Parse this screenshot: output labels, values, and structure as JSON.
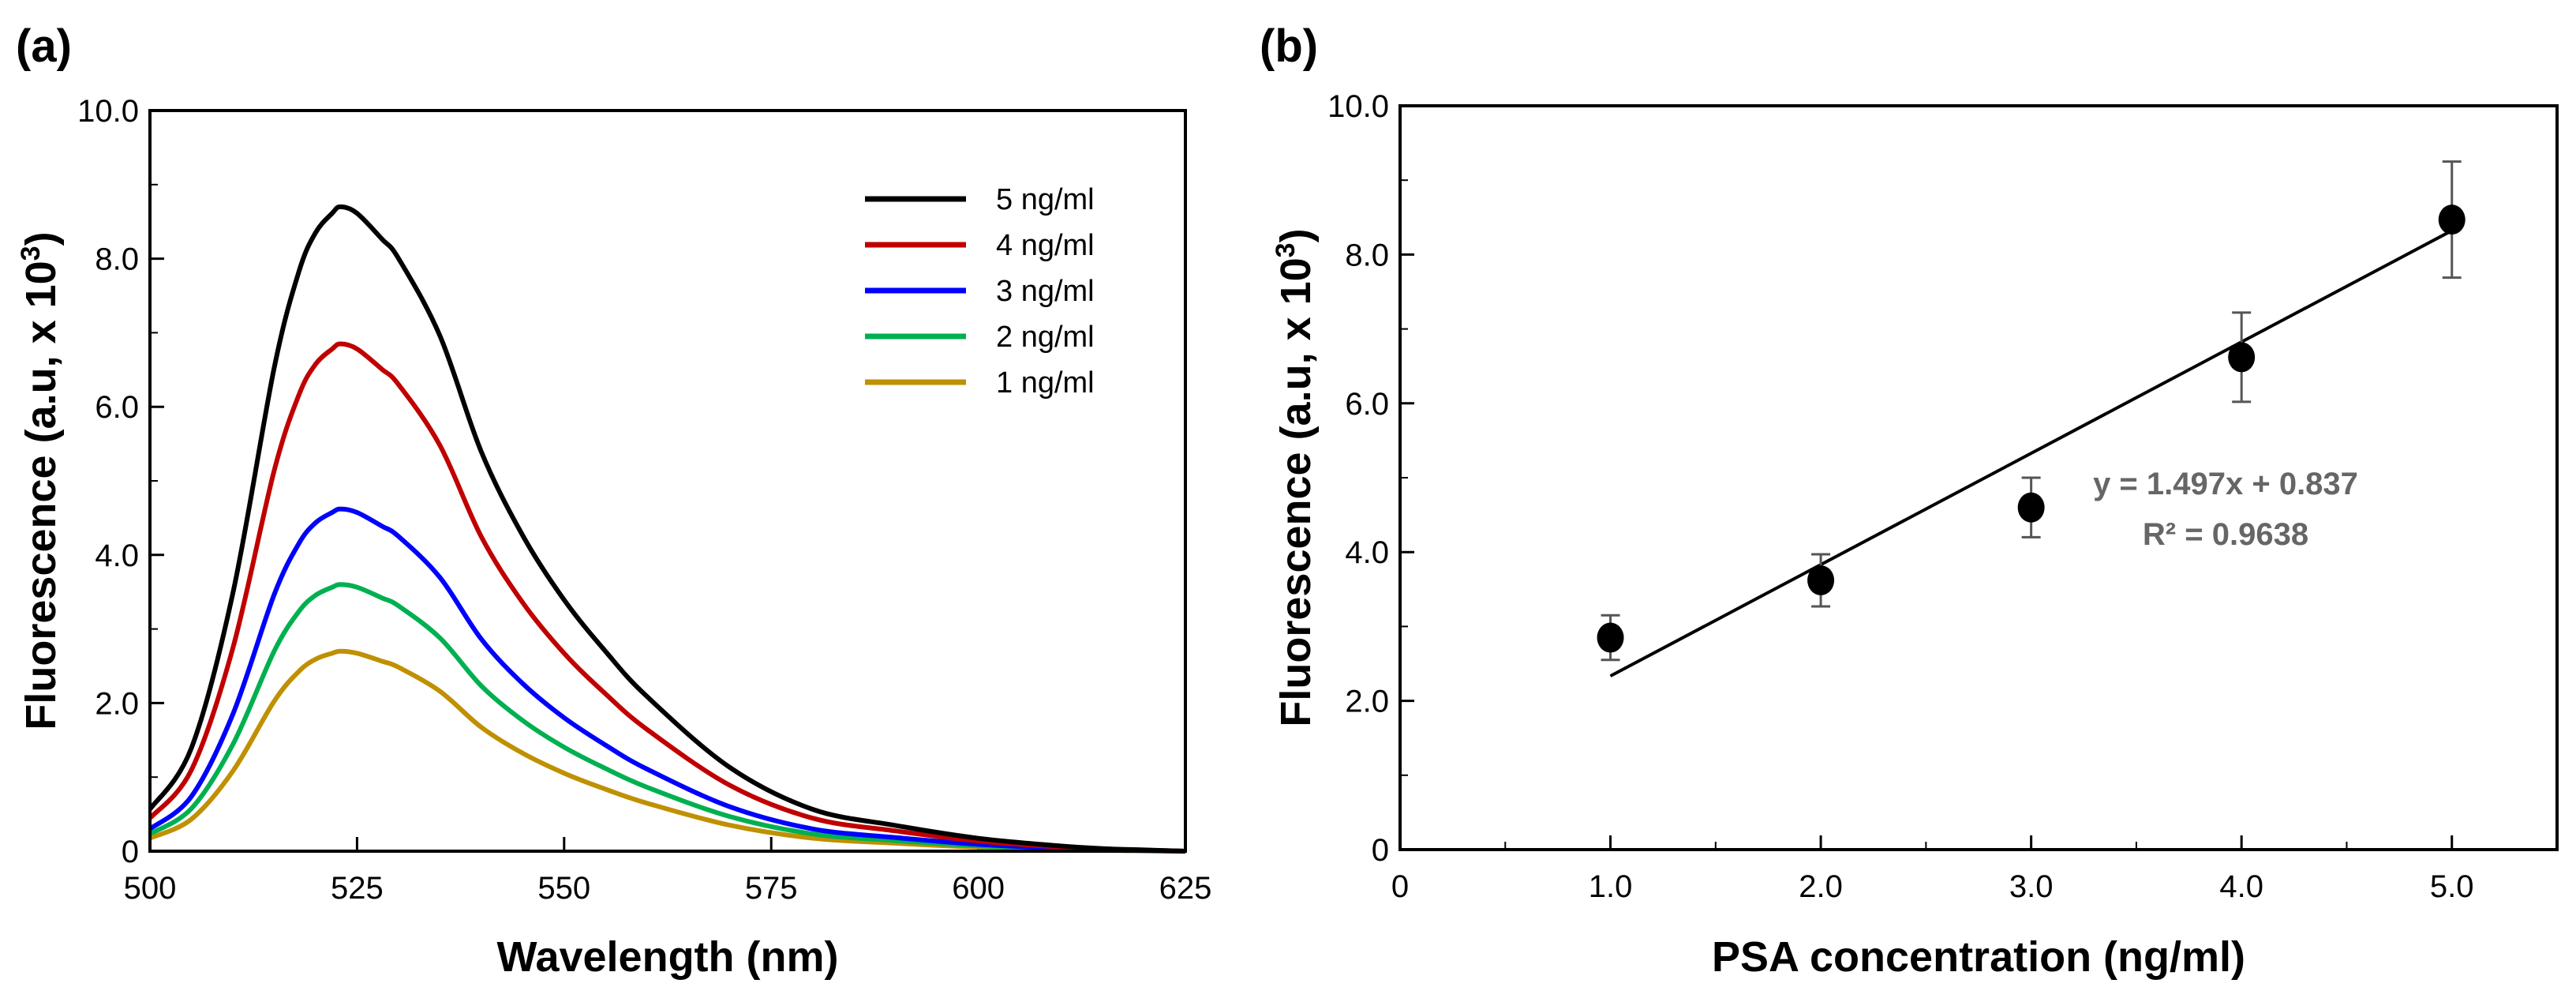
{
  "chart_data": [
    {
      "panel_label": "(a)",
      "type": "line",
      "xlabel": "Wavelength (nm)",
      "ylabel_main": "Fluorescence (a.u, x 10",
      "ylabel_sup": "3",
      "ylabel_end": ")",
      "xlim": [
        500,
        625
      ],
      "ylim": [
        0,
        10
      ],
      "x_ticks": [
        500,
        525,
        550,
        575,
        600,
        625
      ],
      "x_tick_labels": [
        "500",
        "525",
        "550",
        "575",
        "600",
        "625"
      ],
      "y_ticks": [
        0,
        2,
        4,
        6,
        8,
        10
      ],
      "y_tick_labels": [
        "0",
        "2.0",
        "4.0",
        "6.0",
        "8.0",
        "10.0"
      ],
      "legend_position": "top-right",
      "x": [
        500,
        505,
        510,
        515,
        518,
        520,
        522,
        523,
        525,
        528,
        530,
        535,
        540,
        545,
        550,
        555,
        560,
        570,
        580,
        590,
        600,
        610,
        615,
        620,
        625
      ],
      "profile": [
        0.065,
        0.16,
        0.4,
        0.75,
        0.9,
        0.96,
        0.99,
        1.0,
        0.99,
        0.95,
        0.92,
        0.8,
        0.62,
        0.49,
        0.39,
        0.31,
        0.24,
        0.13,
        0.065,
        0.04,
        0.02,
        0.008,
        0.004,
        0.002,
        0.0
      ],
      "series": [
        {
          "name": "5 ng/ml",
          "peak": 8.7,
          "color": "#000000"
        },
        {
          "name": "4 ng/ml",
          "peak": 6.85,
          "color": "#c00000"
        },
        {
          "name": "3 ng/ml",
          "peak": 4.62,
          "color": "#0000ff"
        },
        {
          "name": "2 ng/ml",
          "peak": 3.6,
          "color": "#00b050"
        },
        {
          "name": "1 ng/ml",
          "peak": 2.7,
          "color": "#bf9000"
        }
      ]
    },
    {
      "panel_label": "(b)",
      "type": "scatter",
      "xlabel": "PSA concentration (ng/ml)",
      "ylabel_main": "Fluorescence (a.u, x 10",
      "ylabel_sup": "3",
      "ylabel_end": ")",
      "xlim": [
        0,
        5.5
      ],
      "ylim": [
        0,
        10
      ],
      "x_ticks": [
        0,
        1,
        2,
        3,
        4,
        5
      ],
      "x_tick_labels": [
        "0",
        "1.0",
        "2.0",
        "3.0",
        "4.0",
        "5.0"
      ],
      "y_ticks": [
        0,
        2,
        4,
        6,
        8,
        10
      ],
      "y_tick_labels": [
        "0",
        "2.0",
        "4.0",
        "6.0",
        "8.0",
        "10.0"
      ],
      "points": [
        {
          "x": 1.0,
          "y": 2.85,
          "err": 0.3
        },
        {
          "x": 2.0,
          "y": 3.62,
          "err": 0.35
        },
        {
          "x": 3.0,
          "y": 4.6,
          "err": 0.4
        },
        {
          "x": 4.0,
          "y": 6.62,
          "err": 0.6
        },
        {
          "x": 5.0,
          "y": 8.47,
          "err": 0.78
        }
      ],
      "fit": {
        "slope": 1.497,
        "intercept": 0.837,
        "x_range": [
          1.0,
          5.0
        ]
      },
      "equation_text": "y = 1.497x + 0.837",
      "r2_text": "R² = 0.9638",
      "marker_color": "#000000",
      "annotation_color": "#666666"
    }
  ]
}
